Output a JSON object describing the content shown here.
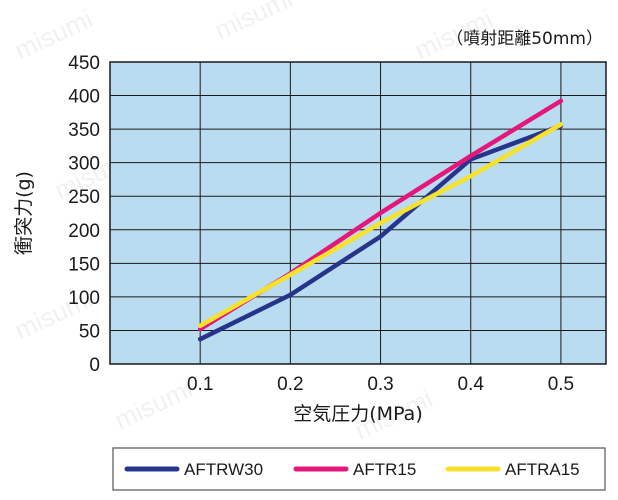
{
  "chart_data": {
    "type": "line",
    "note": "（噴射距離50mm）",
    "xlabel": "空気圧力(MPa)",
    "ylabel": "衝突力(g)",
    "xlim": [
      0.0,
      0.55
    ],
    "ylim": [
      0,
      450
    ],
    "x_ticks": [
      "0.1",
      "0.2",
      "0.3",
      "0.4",
      "0.5"
    ],
    "y_ticks": [
      "0",
      "50",
      "100",
      "150",
      "200",
      "250",
      "300",
      "350",
      "400",
      "450"
    ],
    "grid": true,
    "legend_position": "bottom",
    "background": "#b9dcf0",
    "series": [
      {
        "name": "AFTRW30",
        "color": "#27348b",
        "x": [
          0.1,
          0.2,
          0.3,
          0.4,
          0.5
        ],
        "y": [
          37,
          103,
          190,
          305,
          355
        ]
      },
      {
        "name": "AFTR15",
        "color": "#e5177b",
        "x": [
          0.1,
          0.2,
          0.3,
          0.4,
          0.5
        ],
        "y": [
          52,
          135,
          225,
          310,
          392
        ]
      },
      {
        "name": "AFTRA15",
        "color": "#f7e12b",
        "x": [
          0.1,
          0.2,
          0.3,
          0.4,
          0.5
        ],
        "y": [
          57,
          133,
          210,
          280,
          357
        ]
      }
    ]
  },
  "watermark": "misumi"
}
